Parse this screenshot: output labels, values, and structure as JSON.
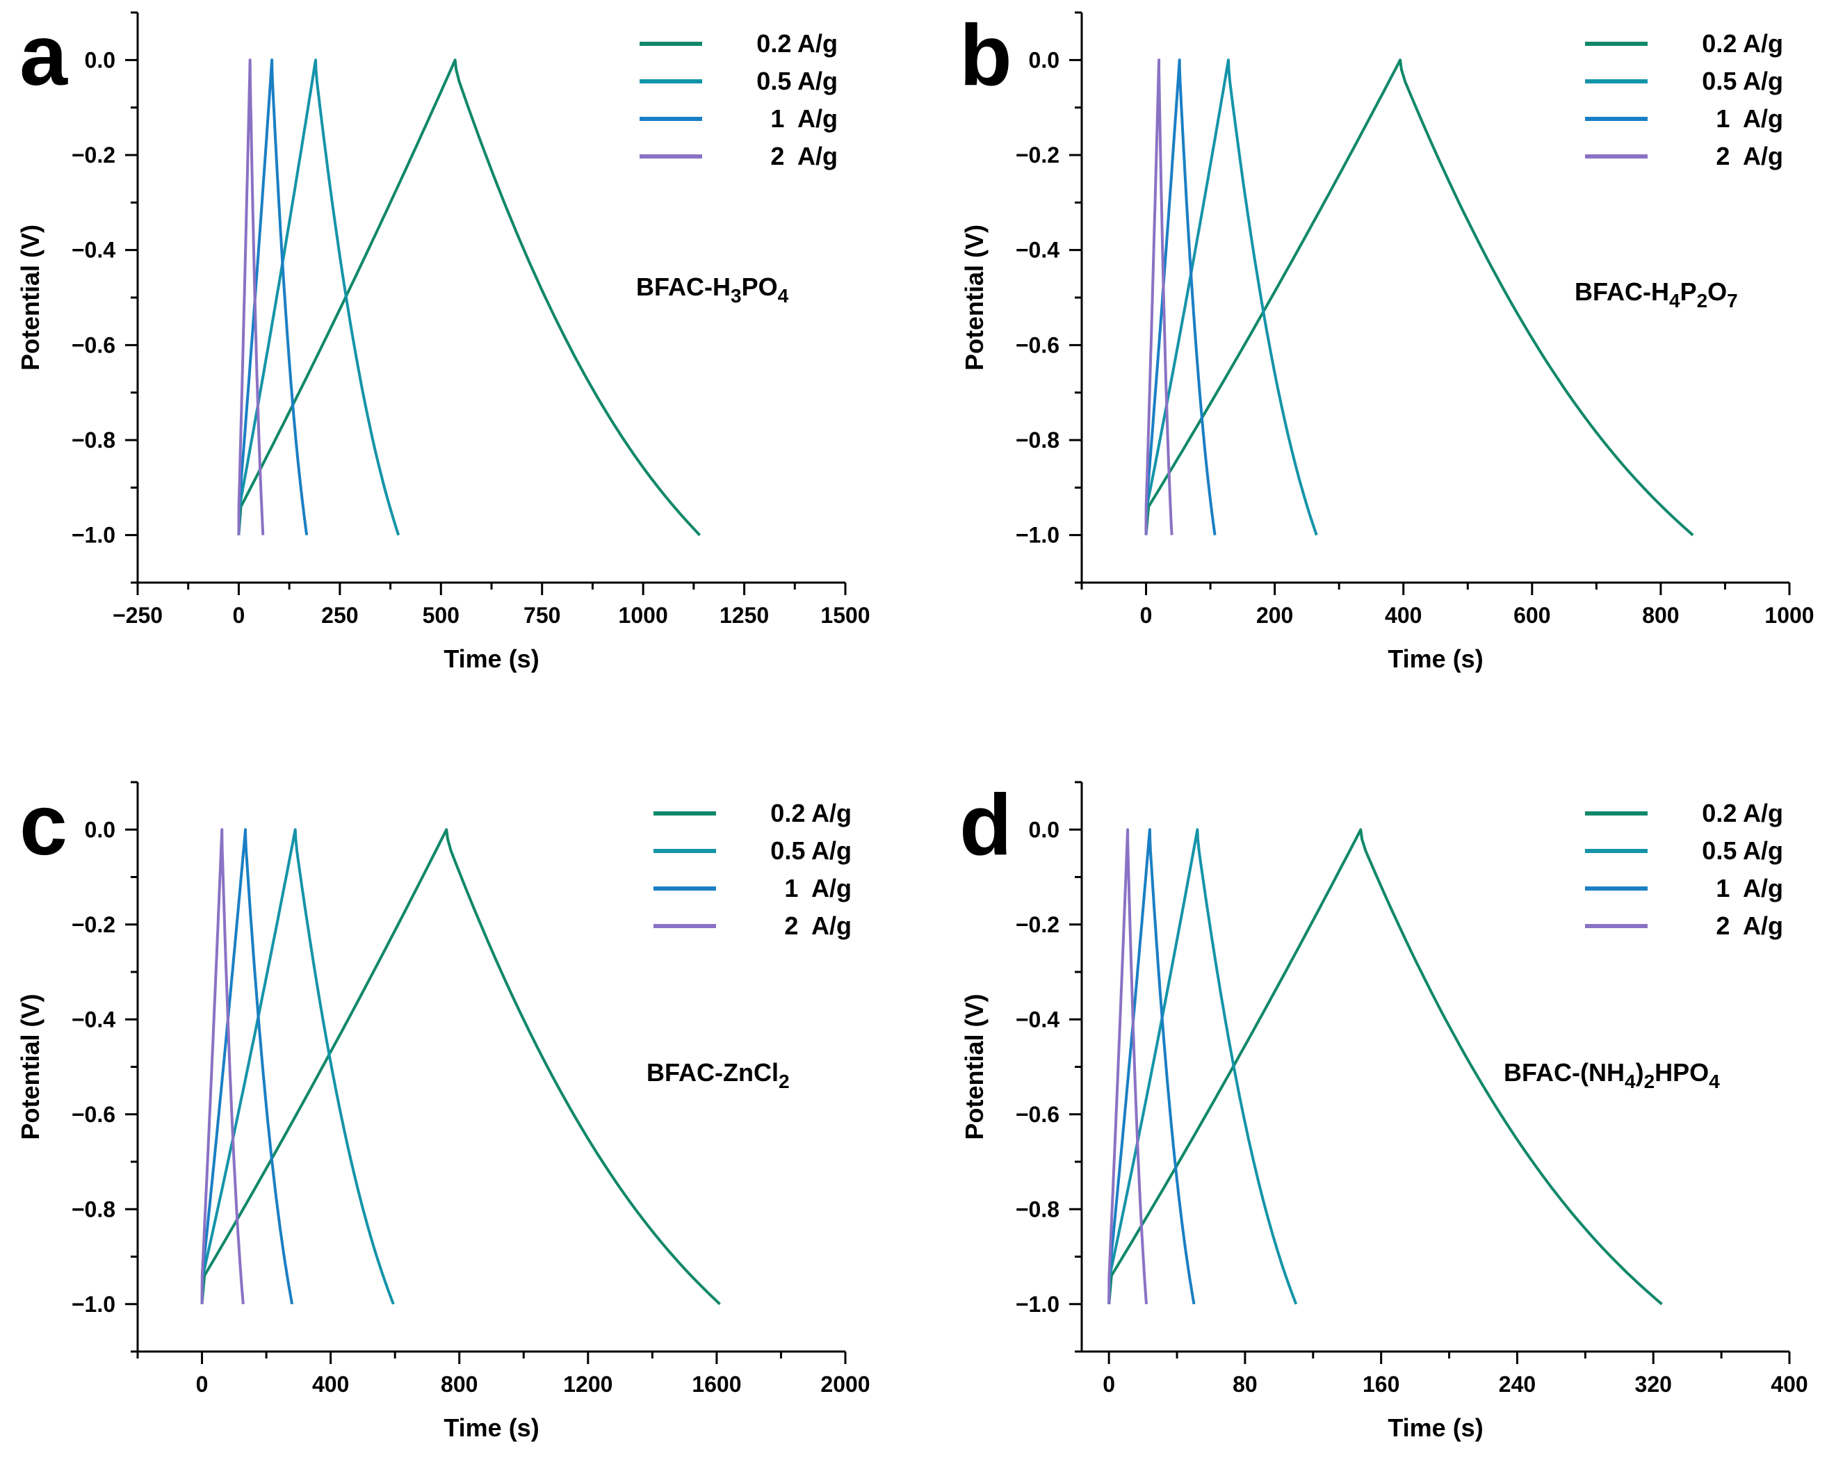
{
  "figure": {
    "panels": [
      {
        "letter": "a",
        "sample_label": {
          "base": "BFAC-H",
          "sub1": "3",
          "mid": "PO",
          "sub2": "4"
        },
        "legend": [
          "0.2 A/g",
          "0.5 A/g",
          "1  A/g",
          "2  A/g"
        ],
        "xlabel": "Time (s)",
        "ylabel": "Potential (V)",
        "xlim": [
          -250,
          1500
        ],
        "ylim": [
          -1.1,
          0.1
        ],
        "xticks": [
          -250,
          0,
          250,
          500,
          750,
          1000,
          1250,
          1500
        ],
        "yticks": [
          -1.0,
          -0.8,
          -0.6,
          -0.4,
          -0.2,
          0.0
        ]
      },
      {
        "letter": "b",
        "sample_label": {
          "base": "BFAC-H",
          "sub1": "4",
          "mid": "P",
          "sub2": "2",
          "mid2": "O",
          "sub3": "7"
        },
        "legend": [
          "0.2 A/g",
          "0.5 A/g",
          "1  A/g",
          "2  A/g"
        ],
        "xlabel": "Time (s)",
        "ylabel": "Potential (V)",
        "xlim": [
          -100,
          1000
        ],
        "ylim": [
          -1.1,
          0.1
        ],
        "xticks": [
          0,
          200,
          400,
          600,
          800,
          1000
        ],
        "yticks": [
          -1.0,
          -0.8,
          -0.6,
          -0.4,
          -0.2,
          0.0
        ]
      },
      {
        "letter": "c",
        "sample_label": {
          "base": "BFAC-ZnCl",
          "sub1": "2"
        },
        "legend": [
          "0.2 A/g",
          "0.5 A/g",
          "1  A/g",
          "2  A/g"
        ],
        "xlabel": "Time (s)",
        "ylabel": "Potential (V)",
        "xlim": [
          -200,
          2000
        ],
        "ylim": [
          -1.1,
          0.1
        ],
        "xticks": [
          0,
          400,
          800,
          1200,
          1600,
          2000
        ],
        "yticks": [
          -1.0,
          -0.8,
          -0.6,
          -0.4,
          -0.2,
          0.0
        ]
      },
      {
        "letter": "d",
        "sample_label": {
          "base": "BFAC-(NH",
          "sub1": "4",
          "mid": ")",
          "sub2": "2",
          "mid2": "HPO",
          "sub3": "4"
        },
        "legend": [
          "0.2 A/g",
          "0.5 A/g",
          "1  A/g",
          "2  A/g"
        ],
        "xlabel": "Time (s)",
        "ylabel": "Potential (V)",
        "xlim": [
          -16,
          400
        ],
        "ylim": [
          -1.1,
          0.1
        ],
        "xticks": [
          0,
          80,
          160,
          240,
          320,
          400
        ],
        "yticks": [
          -1.0,
          -0.8,
          -0.6,
          -0.4,
          -0.2,
          0.0
        ]
      }
    ]
  },
  "colors": {
    "0.2 A/g": "#11886a",
    "0.5 A/g": "#1594a8",
    "1 A/g": "#1a7fc4",
    "2 A/g": "#8a72c4",
    "axis": "#000000"
  },
  "chart_data": [
    {
      "panel": "a",
      "type": "line",
      "title": "BFAC-H3PO4",
      "xlabel": "Time (s)",
      "ylabel": "Potential (V)",
      "xlim": [
        -250,
        1500
      ],
      "ylim": [
        -1.1,
        0.1
      ],
      "series": [
        {
          "name": "0.2 A/g",
          "charge_end_s": 535,
          "discharge_end_s": 1140,
          "start_v": -1.0,
          "peak_v": 0.0
        },
        {
          "name": "0.5 A/g",
          "charge_end_s": 190,
          "discharge_end_s": 395,
          "start_v": -1.0,
          "peak_v": 0.0
        },
        {
          "name": "1 A/g",
          "charge_end_s": 82,
          "discharge_end_s": 168,
          "start_v": -1.0,
          "peak_v": 0.0
        },
        {
          "name": "2 A/g",
          "charge_end_s": 28,
          "discharge_end_s": 60,
          "start_v": -1.0,
          "peak_v": 0.0
        }
      ]
    },
    {
      "panel": "b",
      "type": "line",
      "title": "BFAC-H4P2O7",
      "xlabel": "Time (s)",
      "ylabel": "Potential (V)",
      "xlim": [
        -100,
        1000
      ],
      "ylim": [
        -1.1,
        0.1
      ],
      "series": [
        {
          "name": "0.2 A/g",
          "charge_end_s": 395,
          "discharge_end_s": 850,
          "start_v": -1.0,
          "peak_v": 0.0
        },
        {
          "name": "0.5 A/g",
          "charge_end_s": 128,
          "discharge_end_s": 265,
          "start_v": -1.0,
          "peak_v": 0.0
        },
        {
          "name": "1 A/g",
          "charge_end_s": 52,
          "discharge_end_s": 107,
          "start_v": -1.0,
          "peak_v": 0.0
        },
        {
          "name": "2 A/g",
          "charge_end_s": 20,
          "discharge_end_s": 40,
          "start_v": -1.0,
          "peak_v": 0.0
        }
      ]
    },
    {
      "panel": "c",
      "type": "line",
      "title": "BFAC-ZnCl2",
      "xlabel": "Time (s)",
      "ylabel": "Potential (V)",
      "xlim": [
        -200,
        2000
      ],
      "ylim": [
        -1.1,
        0.1
      ],
      "series": [
        {
          "name": "0.2 A/g",
          "charge_end_s": 760,
          "discharge_end_s": 1610,
          "start_v": -1.0,
          "peak_v": 0.0
        },
        {
          "name": "0.5 A/g",
          "charge_end_s": 290,
          "discharge_end_s": 595,
          "start_v": -1.0,
          "peak_v": 0.0
        },
        {
          "name": "1 A/g",
          "charge_end_s": 135,
          "discharge_end_s": 280,
          "start_v": -1.0,
          "peak_v": 0.0
        },
        {
          "name": "2 A/g",
          "charge_end_s": 62,
          "discharge_end_s": 128,
          "start_v": -1.0,
          "peak_v": 0.0
        }
      ]
    },
    {
      "panel": "d",
      "type": "line",
      "title": "BFAC-(NH4)2HPO4",
      "xlabel": "Time (s)",
      "ylabel": "Potential (V)",
      "xlim": [
        -16,
        400
      ],
      "ylim": [
        -1.1,
        0.1
      ],
      "series": [
        {
          "name": "0.2 A/g",
          "charge_end_s": 148,
          "discharge_end_s": 325,
          "start_v": -1.0,
          "peak_v": 0.0
        },
        {
          "name": "0.5 A/g",
          "charge_end_s": 52,
          "discharge_end_s": 110,
          "start_v": -1.0,
          "peak_v": 0.0
        },
        {
          "name": "1 A/g",
          "charge_end_s": 24,
          "discharge_end_s": 50,
          "start_v": -1.0,
          "peak_v": 0.0
        },
        {
          "name": "2 A/g",
          "charge_end_s": 11,
          "discharge_end_s": 22,
          "start_v": -1.0,
          "peak_v": 0.0
        }
      ]
    }
  ]
}
